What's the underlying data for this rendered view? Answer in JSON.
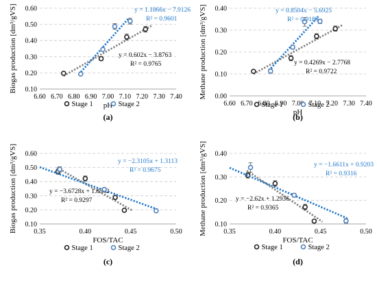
{
  "colors": {
    "stage1": "#222222",
    "stage2": "#4f81bd",
    "trend1": "#7f7f7f",
    "trend2": "#1f77c9",
    "grid": "#c8c8c8"
  },
  "chart_data": [
    {
      "id": "a",
      "panel_label": "(a)",
      "type": "scatter",
      "xlabel": "pH",
      "ylabel": "Biogas production [dm³/gVS]",
      "xlim": [
        6.6,
        7.4
      ],
      "ylim": [
        0.1,
        0.6
      ],
      "xticks": [
        "6.60",
        "6.70",
        "6.80",
        "6.90",
        "7.00",
        "7.10",
        "7.20",
        "7.30",
        "7.40"
      ],
      "yticks": [
        "0.10",
        "0.20",
        "0.30",
        "0.40",
        "0.50",
        "0.60"
      ],
      "grid": "horizontal",
      "legend": "bottom",
      "series": [
        {
          "name": "Stage 1",
          "x": [
            6.74,
            6.96,
            7.11,
            7.22
          ],
          "y": [
            0.197,
            0.288,
            0.422,
            0.47
          ],
          "err": [
            0.0,
            0.012,
            0.018,
            0.018
          ],
          "trend": {
            "slope": 0.602,
            "intercept": -3.8763,
            "x": [
              6.74,
              7.26
            ]
          },
          "equation": "y = 0.602x − 3.8763",
          "r2": "R² = 0.9765"
        },
        {
          "name": "Stage 2",
          "x": [
            6.84,
            6.97,
            7.04,
            7.13
          ],
          "y": [
            0.193,
            0.345,
            0.487,
            0.52
          ],
          "err": [
            0.006,
            0.008,
            0.018,
            0.018
          ],
          "trend": {
            "slope": 1.1866,
            "intercept": -7.9126,
            "x": [
              6.83,
              7.12
            ]
          },
          "equation": "y = 1.1866x − 7.9126",
          "r2": "R² = 0.9601"
        }
      ]
    },
    {
      "id": "b",
      "panel_label": "(b)",
      "type": "scatter",
      "xlabel": "pH",
      "ylabel": "Methane production [dm³/gVS]",
      "xlim": [
        6.6,
        7.4
      ],
      "ylim": [
        0.0,
        0.4
      ],
      "xticks": [
        "6.60",
        "6.70",
        "6.80",
        "6.90",
        "7.00",
        "7.10",
        "7.20",
        "7.30",
        "7.40"
      ],
      "yticks": [
        "0.00",
        "0.10",
        "0.20",
        "0.30",
        "0.40"
      ],
      "grid": "horizontal",
      "legend": "bottom",
      "series": [
        {
          "name": "Stage 1",
          "x": [
            6.74,
            6.96,
            7.11,
            7.22
          ],
          "y": [
            0.112,
            0.172,
            0.272,
            0.307
          ],
          "err": [
            0.0,
            0.012,
            0.012,
            0.012
          ],
          "trend": {
            "slope": 0.4269,
            "intercept": -2.7768,
            "x": [
              6.74,
              7.26
            ]
          },
          "equation": "y = 0.4269x − 2.7768",
          "r2": "R² = 0.9722"
        },
        {
          "name": "Stage 2",
          "x": [
            6.84,
            6.97,
            7.04,
            7.13
          ],
          "y": [
            0.113,
            0.222,
            0.338,
            0.34
          ],
          "err": [
            0.01,
            0.008,
            0.02,
            0.01
          ],
          "trend": {
            "slope": 0.8504,
            "intercept": -5.6925,
            "x": [
              6.83,
              7.12
            ]
          },
          "equation": "y = 0.8504x − 5.6925",
          "r2": "R² = 0.9188"
        }
      ]
    },
    {
      "id": "c",
      "panel_label": "(c)",
      "type": "scatter",
      "xlabel": "FOS/TAC",
      "ylabel": "Biogas production [dm³/gVS]",
      "xlim": [
        0.35,
        0.5
      ],
      "ylim": [
        0.1,
        0.6
      ],
      "xticks": [
        "0.35",
        "0.40",
        "0.45",
        "0.50"
      ],
      "yticks": [
        "0.10",
        "0.20",
        "0.30",
        "0.40",
        "0.50",
        "0.60"
      ],
      "grid": "horizontal",
      "legend": "bottom",
      "series": [
        {
          "name": "Stage 1",
          "x": [
            0.37,
            0.4,
            0.433,
            0.443
          ],
          "y": [
            0.47,
            0.422,
            0.288,
            0.197
          ],
          "err": [
            0.018,
            0.018,
            0.012,
            0.0
          ],
          "trend": {
            "slope": -3.6728,
            "intercept": 1.8542,
            "x": [
              0.369,
              0.452
            ]
          },
          "equation": "y = −3.6728x + 1.8542",
          "r2": "R² = 0.9297"
        },
        {
          "name": "Stage 2",
          "x": [
            0.372,
            0.421,
            0.478
          ],
          "y": [
            0.487,
            0.345,
            0.193
          ],
          "err": [
            0.018,
            0.008,
            0.006
          ],
          "trend": {
            "slope": -2.3105,
            "intercept": 1.3113,
            "x": [
              0.35,
              0.479
            ]
          },
          "equation": "y = −2.3105x + 1.3113",
          "r2": "R² = 0.9675"
        }
      ]
    },
    {
      "id": "d",
      "panel_label": "(d)",
      "type": "scatter",
      "xlabel": "FOS/TAC",
      "ylabel": "Methane production [dm³/gVS]",
      "xlim": [
        0.35,
        0.5
      ],
      "ylim": [
        0.1,
        0.4
      ],
      "xticks": [
        "0.35",
        "0.40",
        "0.45",
        "0.50"
      ],
      "yticks": [
        "0.10",
        "0.20",
        "0.30",
        "0.40"
      ],
      "grid": "horizontal",
      "legend": "bottom",
      "series": [
        {
          "name": "Stage 1",
          "x": [
            0.37,
            0.4,
            0.433,
            0.443
          ],
          "y": [
            0.307,
            0.272,
            0.172,
            0.112
          ],
          "err": [
            0.012,
            0.012,
            0.012,
            0.0
          ],
          "trend": {
            "slope": -2.62,
            "intercept": 1.2936,
            "x": [
              0.369,
              0.452
            ]
          },
          "equation": "y = −2.62x + 1.2936",
          "r2": "R² = 0.9365"
        },
        {
          "name": "Stage 2",
          "x": [
            0.373,
            0.421,
            0.478
          ],
          "y": [
            0.34,
            0.222,
            0.113
          ],
          "err": [
            0.02,
            0.008,
            0.01
          ],
          "trend": {
            "slope": -1.6611,
            "intercept": 0.9203,
            "x": [
              0.35,
              0.479
            ]
          },
          "equation": "y = −1.6611x + 0.9203",
          "r2": "R² = 0.9316"
        }
      ]
    }
  ]
}
